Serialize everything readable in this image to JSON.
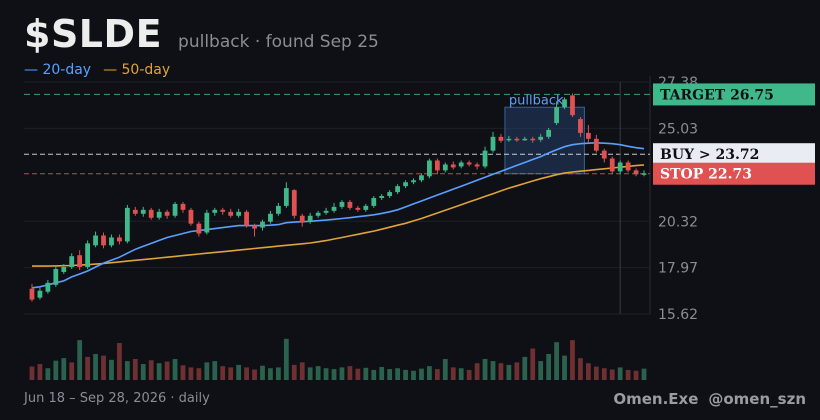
{
  "header": {
    "ticker": "$SLDE",
    "subtitle": "pullback · found Sep 25"
  },
  "legend": {
    "ma20": "— 20-day",
    "ma50": "— 50-day"
  },
  "footer": {
    "range": "Jun 18 – Sep 28, 2026 · daily",
    "brand": "Omen.Exe",
    "handle": "@omen_szn"
  },
  "colors": {
    "up": "#3fb98a",
    "down": "#e05252",
    "ma20": "#5aa0ff",
    "ma50": "#e0a23a",
    "target": "#3fb98a",
    "buy": "#e9ecf2",
    "stop": "#e05252"
  },
  "chart_data": {
    "type": "candlestick",
    "title": "$SLDE",
    "y_ticks": [
      15.62,
      17.97,
      20.32,
      25.03,
      27.38
    ],
    "ylim": [
      15.62,
      27.38
    ],
    "levels": {
      "target": {
        "label": "TARGET 26.75",
        "value": 26.75
      },
      "buy": {
        "label": "BUY > 23.72",
        "value": 23.72
      },
      "stop": {
        "label": "STOP 22.73",
        "value": 22.73
      }
    },
    "annotation": {
      "label": "pullback",
      "from_index": 60,
      "to_index": 69,
      "low": 22.73,
      "high": 26.1
    },
    "candles": [
      [
        16.9,
        16.35,
        17.15,
        16.25
      ],
      [
        16.45,
        16.8,
        16.95,
        16.35
      ],
      [
        16.75,
        17.2,
        17.35,
        16.65
      ],
      [
        17.1,
        17.9,
        18.05,
        17.0
      ],
      [
        17.75,
        18.0,
        18.15,
        17.65
      ],
      [
        18.0,
        18.55,
        18.7,
        17.9
      ],
      [
        18.6,
        18.0,
        18.85,
        17.85
      ],
      [
        18.0,
        19.2,
        19.35,
        17.9
      ],
      [
        19.1,
        19.6,
        19.8,
        19.0
      ],
      [
        19.6,
        19.1,
        19.75,
        18.95
      ],
      [
        19.1,
        19.5,
        19.65,
        19.0
      ],
      [
        19.5,
        19.3,
        19.65,
        19.15
      ],
      [
        19.3,
        21.0,
        21.15,
        19.2
      ],
      [
        20.9,
        20.7,
        21.05,
        20.6
      ],
      [
        20.7,
        20.9,
        21.05,
        20.55
      ],
      [
        20.9,
        20.5,
        21.0,
        20.4
      ],
      [
        20.5,
        20.8,
        20.95,
        20.4
      ],
      [
        20.8,
        20.6,
        20.9,
        20.45
      ],
      [
        20.6,
        21.2,
        21.3,
        20.5
      ],
      [
        21.2,
        20.9,
        21.3,
        20.75
      ],
      [
        20.9,
        20.2,
        21.0,
        20.1
      ],
      [
        20.2,
        19.7,
        20.3,
        19.55
      ],
      [
        19.75,
        20.75,
        20.9,
        19.65
      ],
      [
        20.75,
        20.9,
        21.0,
        20.6
      ],
      [
        20.9,
        20.8,
        21.0,
        20.65
      ],
      [
        20.8,
        20.6,
        20.95,
        20.5
      ],
      [
        20.6,
        20.8,
        20.95,
        20.5
      ],
      [
        20.8,
        20.1,
        20.9,
        20.0
      ],
      [
        20.1,
        19.95,
        20.2,
        19.55
      ],
      [
        20.0,
        20.3,
        20.4,
        19.85
      ],
      [
        20.3,
        20.7,
        20.85,
        20.2
      ],
      [
        20.7,
        21.1,
        21.25,
        20.6
      ],
      [
        21.1,
        22.0,
        22.3,
        21.0
      ],
      [
        21.9,
        20.6,
        21.95,
        20.45
      ],
      [
        20.6,
        20.25,
        20.7,
        20.05
      ],
      [
        20.3,
        20.6,
        20.75,
        20.2
      ],
      [
        20.6,
        20.75,
        20.85,
        20.5
      ],
      [
        20.75,
        20.85,
        21.0,
        20.65
      ],
      [
        20.85,
        21.05,
        21.25,
        20.75
      ],
      [
        21.05,
        21.3,
        21.4,
        20.95
      ],
      [
        21.3,
        21.0,
        21.4,
        20.9
      ],
      [
        21.0,
        20.9,
        21.1,
        20.8
      ],
      [
        20.9,
        21.1,
        21.2,
        20.8
      ],
      [
        21.1,
        21.5,
        21.6,
        21.0
      ],
      [
        21.5,
        21.6,
        21.7,
        21.4
      ],
      [
        21.6,
        21.8,
        21.9,
        21.5
      ],
      [
        21.8,
        22.1,
        22.2,
        21.7
      ],
      [
        22.1,
        22.3,
        22.4,
        22.0
      ],
      [
        22.3,
        22.4,
        22.5,
        22.2
      ],
      [
        22.4,
        22.65,
        22.75,
        22.3
      ],
      [
        22.6,
        23.4,
        23.5,
        22.5
      ],
      [
        23.4,
        22.9,
        23.5,
        22.7
      ],
      [
        22.9,
        23.2,
        23.3,
        22.8
      ],
      [
        23.2,
        23.05,
        23.35,
        22.95
      ],
      [
        23.1,
        23.3,
        23.4,
        23.0
      ],
      [
        23.3,
        23.2,
        23.4,
        23.1
      ],
      [
        23.2,
        23.1,
        23.3,
        22.95
      ],
      [
        23.1,
        23.9,
        24.1,
        23.0
      ],
      [
        23.9,
        24.6,
        24.85,
        23.8
      ],
      [
        24.6,
        24.4,
        24.75,
        24.3
      ],
      [
        24.45,
        24.5,
        24.65,
        24.35
      ],
      [
        24.5,
        24.45,
        24.6,
        24.35
      ],
      [
        24.45,
        24.5,
        24.6,
        24.4
      ],
      [
        24.5,
        24.45,
        24.6,
        24.3
      ],
      [
        24.45,
        24.6,
        24.75,
        24.35
      ],
      [
        24.6,
        24.95,
        25.05,
        24.5
      ],
      [
        25.3,
        26.1,
        26.4,
        25.2
      ],
      [
        26.1,
        26.5,
        26.6,
        26.0
      ],
      [
        26.7,
        25.7,
        26.8,
        25.6
      ],
      [
        25.5,
        24.8,
        25.6,
        24.6
      ],
      [
        24.8,
        24.5,
        25.2,
        24.3
      ],
      [
        24.5,
        23.9,
        24.7,
        23.8
      ],
      [
        23.9,
        23.5,
        24.0,
        23.3
      ],
      [
        23.5,
        22.85,
        23.6,
        22.7
      ],
      [
        22.85,
        23.3,
        23.4,
        22.7
      ],
      [
        23.3,
        22.9,
        23.4,
        22.8
      ],
      [
        22.9,
        22.7,
        23.0,
        22.6
      ],
      [
        22.7,
        22.75,
        22.9,
        22.6
      ]
    ],
    "ma20": [
      16.95,
      17.0,
      17.1,
      17.2,
      17.3,
      17.5,
      17.65,
      17.8,
      18.0,
      18.2,
      18.35,
      18.5,
      18.7,
      18.9,
      19.05,
      19.2,
      19.35,
      19.5,
      19.6,
      19.7,
      19.8,
      19.85,
      19.9,
      19.95,
      20.0,
      20.05,
      20.1,
      20.1,
      20.1,
      20.1,
      20.12,
      20.15,
      20.25,
      20.28,
      20.3,
      20.32,
      20.35,
      20.38,
      20.42,
      20.46,
      20.5,
      20.55,
      20.6,
      20.65,
      20.72,
      20.8,
      20.9,
      21.05,
      21.2,
      21.35,
      21.5,
      21.65,
      21.8,
      21.95,
      22.1,
      22.25,
      22.4,
      22.55,
      22.7,
      22.85,
      23.0,
      23.15,
      23.3,
      23.45,
      23.6,
      23.78,
      23.95,
      24.1,
      24.2,
      24.25,
      24.28,
      24.3,
      24.28,
      24.25,
      24.2,
      24.12,
      24.05,
      24.0
    ],
    "ma50": [
      18.05,
      18.05,
      18.05,
      18.06,
      18.07,
      18.08,
      18.1,
      18.12,
      18.15,
      18.18,
      18.22,
      18.26,
      18.3,
      18.34,
      18.38,
      18.42,
      18.46,
      18.5,
      18.54,
      18.58,
      18.62,
      18.66,
      18.7,
      18.74,
      18.78,
      18.82,
      18.86,
      18.9,
      18.94,
      18.98,
      19.02,
      19.06,
      19.1,
      19.14,
      19.18,
      19.22,
      19.28,
      19.34,
      19.42,
      19.5,
      19.58,
      19.66,
      19.74,
      19.82,
      19.92,
      20.02,
      20.12,
      20.22,
      20.34,
      20.46,
      20.6,
      20.74,
      20.88,
      21.02,
      21.16,
      21.3,
      21.44,
      21.58,
      21.72,
      21.86,
      22.0,
      22.12,
      22.24,
      22.36,
      22.48,
      22.58,
      22.68,
      22.76,
      22.82,
      22.86,
      22.9,
      22.94,
      22.98,
      23.02,
      23.06,
      23.1,
      23.14,
      23.18
    ],
    "volume": [
      0.32,
      0.38,
      0.28,
      0.46,
      0.52,
      0.42,
      0.95,
      0.55,
      0.62,
      0.58,
      0.48,
      0.88,
      0.45,
      0.5,
      0.38,
      0.47,
      0.4,
      0.44,
      0.5,
      0.35,
      0.3,
      0.28,
      0.42,
      0.45,
      0.33,
      0.3,
      0.36,
      0.3,
      0.25,
      0.34,
      0.28,
      0.3,
      0.98,
      0.36,
      0.42,
      0.3,
      0.33,
      0.28,
      0.26,
      0.3,
      0.33,
      0.27,
      0.29,
      0.24,
      0.31,
      0.26,
      0.28,
      0.24,
      0.22,
      0.27,
      0.33,
      0.26,
      0.5,
      0.3,
      0.28,
      0.24,
      0.4,
      0.5,
      0.45,
      0.4,
      0.36,
      0.42,
      0.55,
      0.75,
      0.45,
      0.62,
      0.9,
      0.58,
      0.95,
      0.52,
      0.4,
      0.32,
      0.28,
      0.25,
      0.3,
      0.24,
      0.22,
      0.27
    ],
    "volume_up": [
      false,
      false,
      true,
      true,
      true,
      false,
      true,
      false,
      true,
      false,
      true,
      false,
      true,
      false,
      true,
      false,
      true,
      false,
      true,
      false,
      false,
      false,
      true,
      true,
      false,
      false,
      true,
      false,
      false,
      true,
      true,
      true,
      true,
      false,
      false,
      true,
      true,
      true,
      true,
      true,
      false,
      false,
      true,
      true,
      true,
      true,
      true,
      true,
      true,
      true,
      true,
      false,
      true,
      false,
      true,
      false,
      false,
      true,
      true,
      false,
      true,
      false,
      true,
      false,
      true,
      true,
      true,
      true,
      false,
      false,
      false,
      false,
      false,
      false,
      true,
      false,
      false,
      true
    ]
  }
}
